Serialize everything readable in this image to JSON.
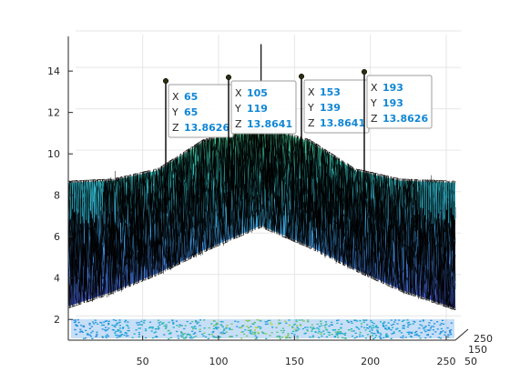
{
  "chart_data": {
    "type": "surface",
    "title": "",
    "xlabel": "",
    "ylabel": "",
    "zlabel": "",
    "x_ticks": [
      "50",
      "100",
      "150",
      "200",
      "250"
    ],
    "y_ticks": [
      "50",
      "150",
      "250"
    ],
    "z_ticks": [
      "2",
      "4",
      "6",
      "8",
      "10",
      "12",
      "14"
    ],
    "xlim": [
      1,
      256
    ],
    "ylim": [
      1,
      256
    ],
    "zlim": [
      1,
      15.5
    ],
    "grid": true,
    "colormap": "parula",
    "contour_projection": true,
    "surface_profile": {
      "description_x": [
        1,
        30,
        60,
        90,
        128,
        160,
        190,
        220,
        256
      ],
      "center_z": [
        4.6,
        5.2,
        6.6,
        8.4,
        10.3,
        8.6,
        6.8,
        5.3,
        4.7
      ],
      "lower_z": [
        2.9,
        3.6,
        4.5,
        5.6,
        6.8,
        5.8,
        4.7,
        3.7,
        2.8
      ],
      "upper_z": [
        8.6,
        8.7,
        9.2,
        10.6,
        11.3,
        10.6,
        9.2,
        8.7,
        8.6
      ],
      "central_spike_z": 15.3
    },
    "datatips": [
      {
        "x_label": "X",
        "x": "65",
        "y_label": "Y",
        "y": "65",
        "z_label": "Z",
        "z": "13.8626"
      },
      {
        "x_label": "X",
        "x": "105",
        "y_label": "Y",
        "y": "119",
        "z_label": "Z",
        "z": "13.8641"
      },
      {
        "x_label": "X",
        "x": "153",
        "y_label": "Y",
        "y": "139",
        "z_label": "Z",
        "z": "13.8641"
      },
      {
        "x_label": "X",
        "x": "193",
        "y_label": "Y",
        "y": "193",
        "z_label": "Z",
        "z": "13.8626"
      }
    ],
    "colors": {
      "mesh_edge": "#000000",
      "low": "#3e26a8",
      "mid": "#1bb5c9",
      "high": "#f9fb0e",
      "tip_value": "#0f86d6"
    }
  }
}
